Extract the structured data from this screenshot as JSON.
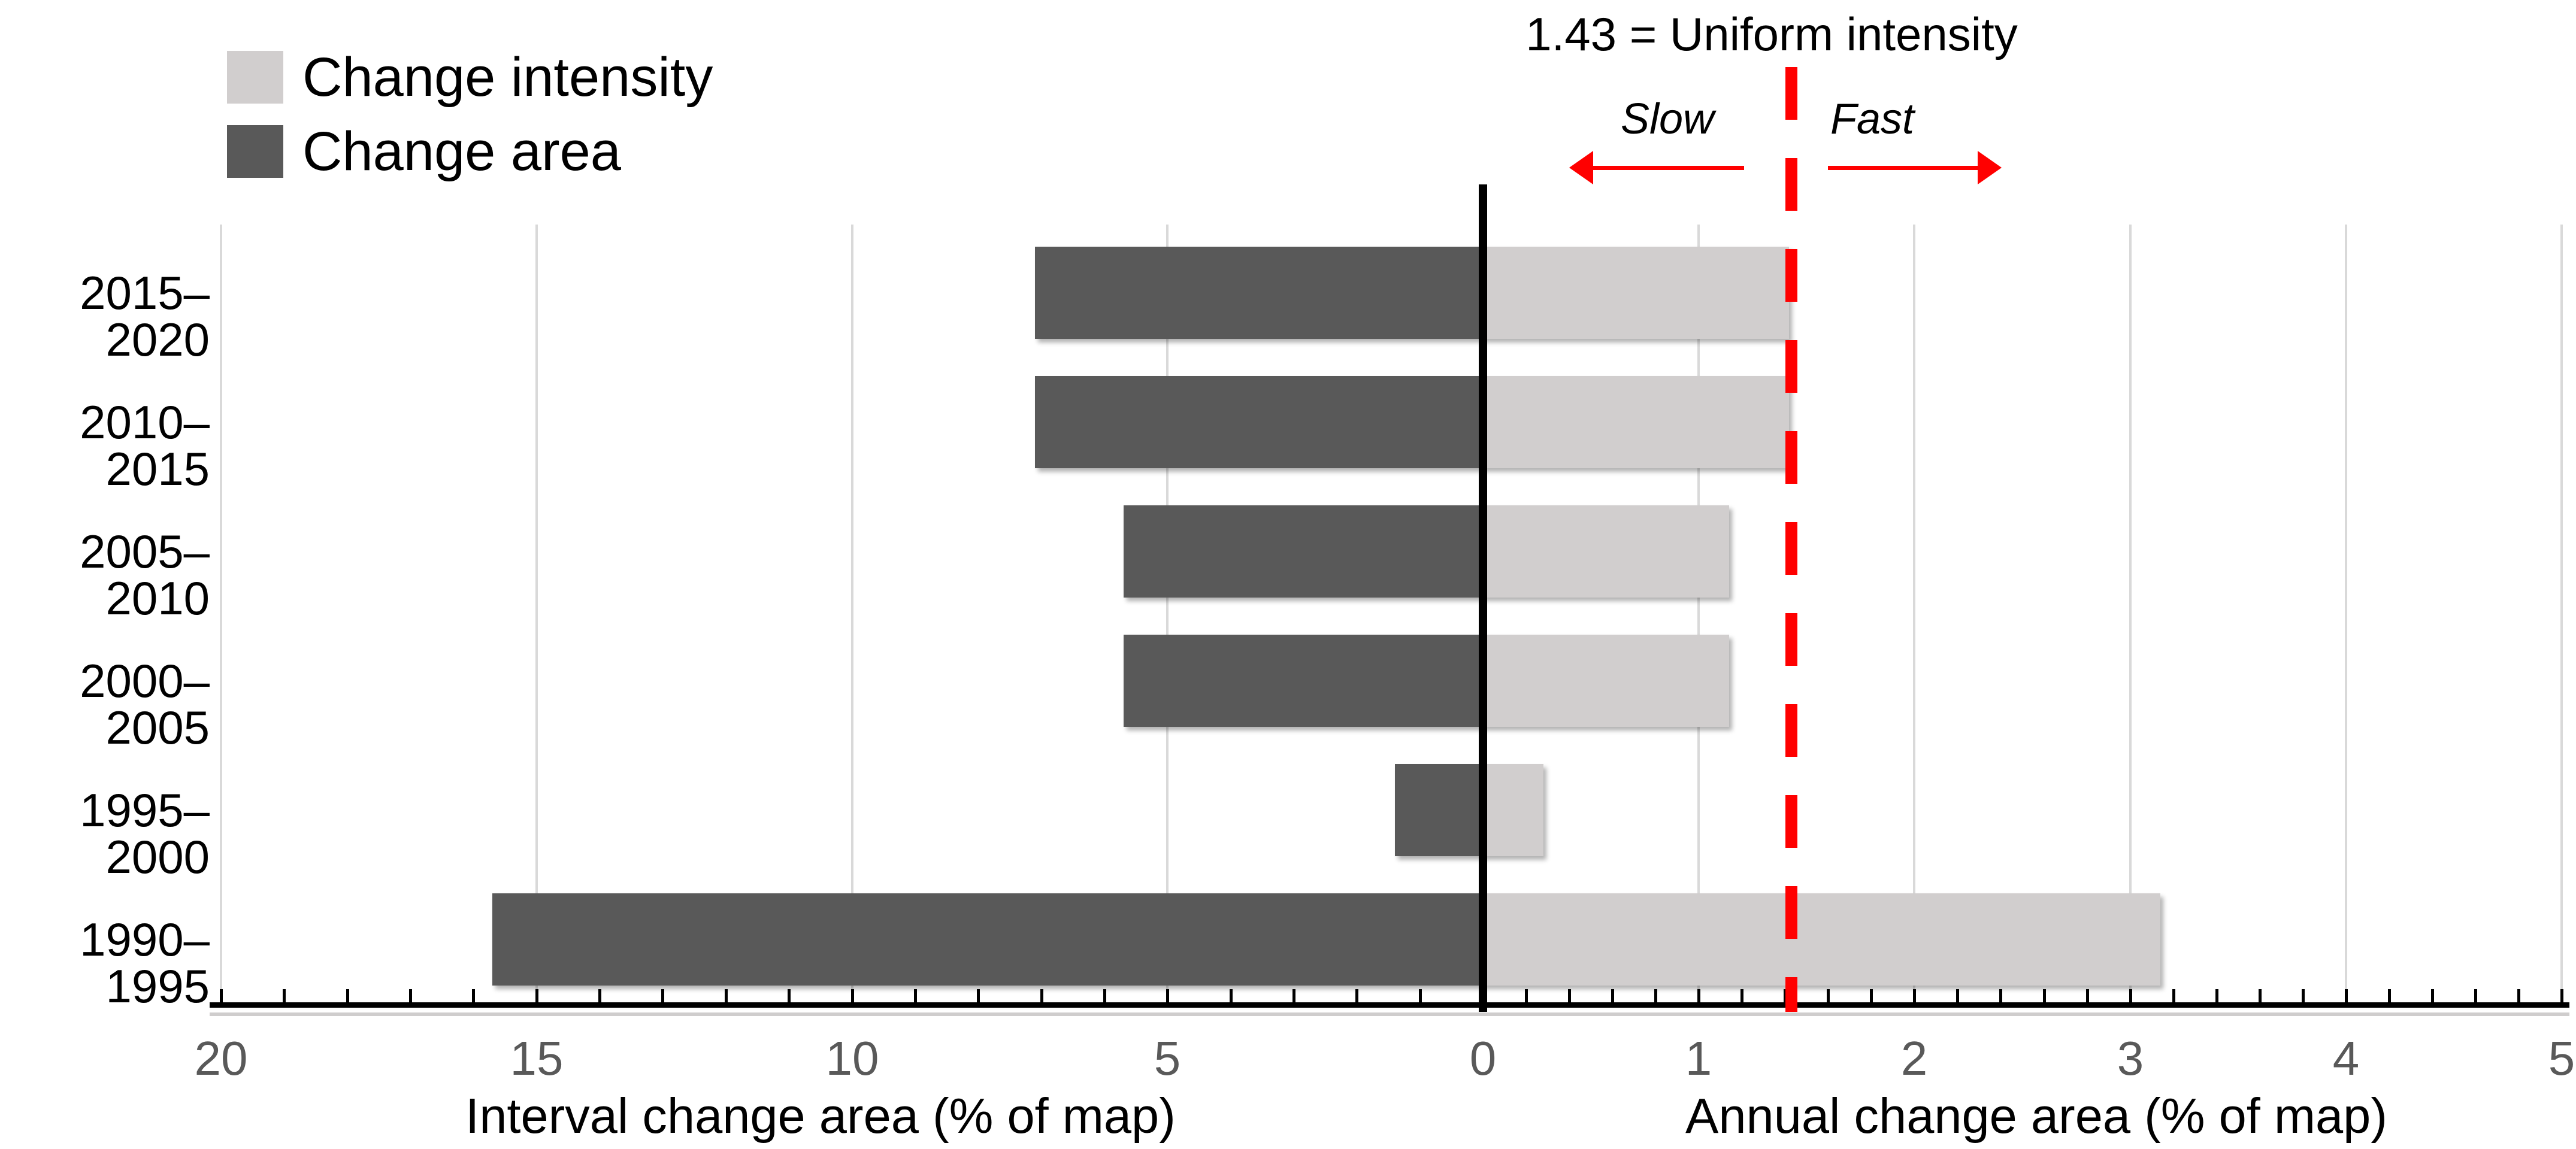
{
  "chart_data": {
    "type": "bar",
    "orientation": "horizontal",
    "diverging": true,
    "categories": [
      "2015–2020",
      "2010–2015",
      "2005–2010",
      "2000–2005",
      "1995–2000",
      "1990–1995"
    ],
    "series": [
      {
        "name": "Change intensity",
        "side": "right",
        "color": "#d1cece",
        "values": [
          1.42,
          1.42,
          1.14,
          1.14,
          0.28,
          3.14
        ]
      },
      {
        "name": "Change area",
        "side": "left",
        "color": "#595959",
        "values": [
          7.1,
          7.1,
          5.7,
          5.7,
          1.4,
          15.7
        ]
      }
    ],
    "left_axis": {
      "title": "Interval change area (% of map)",
      "tick_labels": [
        20,
        15,
        10,
        5,
        0
      ],
      "range": [
        0,
        20
      ],
      "minor_tick_step": 1,
      "tick_label_color": "#595959"
    },
    "right_axis": {
      "title": "Annual change area (% of map)",
      "tick_labels": [
        1,
        2,
        3,
        4,
        5
      ],
      "range": [
        0,
        5
      ],
      "minor_tick_step": 0.2,
      "tick_label_color": "#595959"
    },
    "reference_line": {
      "value": 1.43,
      "label": "1.43 = Uniform intensity",
      "color": "#ff0000",
      "style": "dashed"
    },
    "annotations": [
      {
        "text": "Slow",
        "direction": "left"
      },
      {
        "text": "Fast",
        "direction": "right"
      }
    ],
    "legend": {
      "position": "top-left",
      "items": [
        {
          "label": "Change intensity",
          "color": "#d1cece"
        },
        {
          "label": "Change area",
          "color": "#595959"
        }
      ]
    },
    "grid": true,
    "background": "#ffffff"
  }
}
